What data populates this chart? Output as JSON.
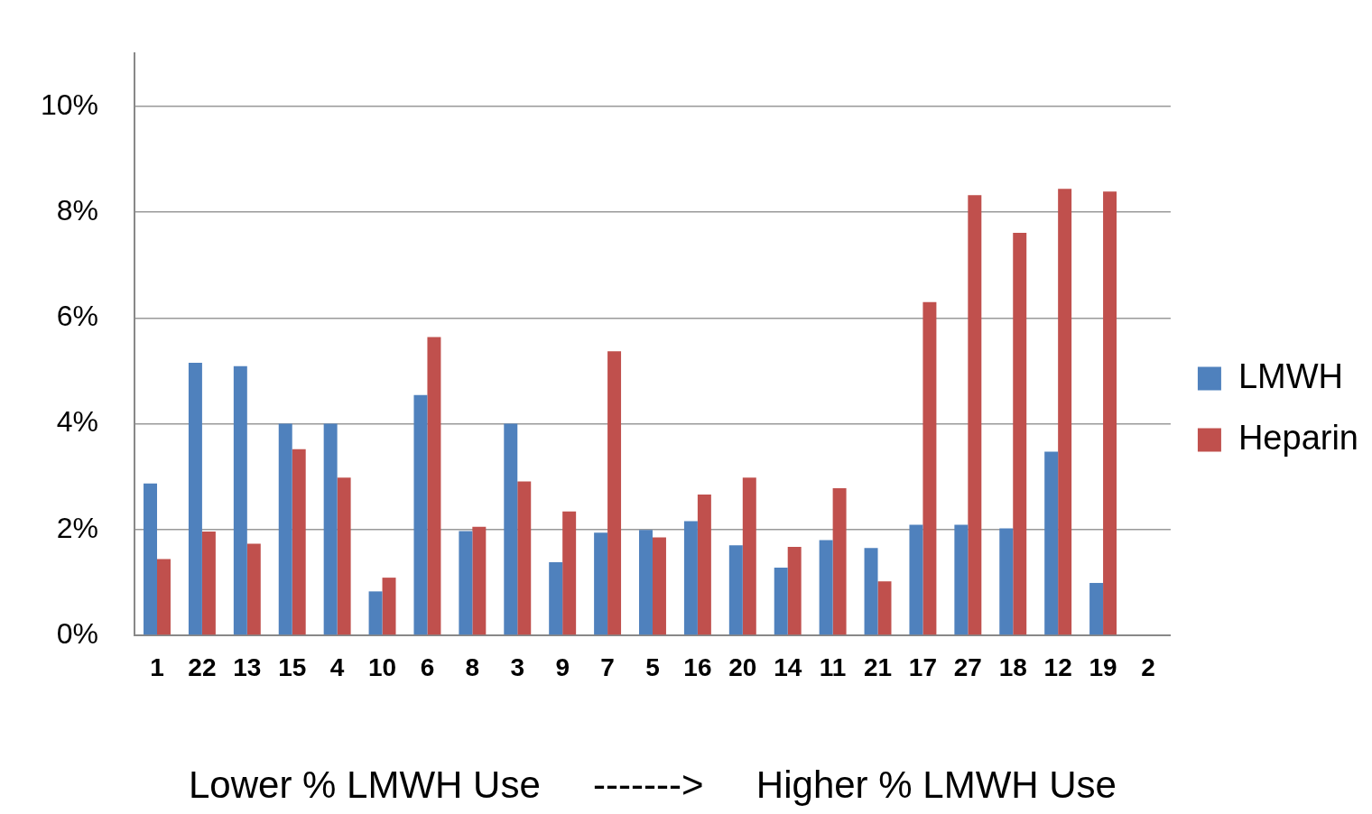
{
  "chart_data": {
    "type": "bar",
    "xlabel": "Lower % LMWH Use     ------->     Higher % LMWH Use",
    "categories": [
      "1",
      "22",
      "13",
      "15",
      "4",
      "10",
      "6",
      "8",
      "3",
      "9",
      "7",
      "5",
      "16",
      "20",
      "14",
      "11",
      "21",
      "17",
      "27",
      "18",
      "12",
      "19",
      "2"
    ],
    "series": [
      {
        "name": "LMWH",
        "color": "#4f81bd",
        "values": [
          2.87,
          5.15,
          5.09,
          4.0,
          4.0,
          0.83,
          4.54,
          1.97,
          4.0,
          1.38,
          1.94,
          1.99,
          2.16,
          1.7,
          1.28,
          1.8,
          1.65,
          2.09,
          2.09,
          2.02,
          3.47,
          0.99,
          null
        ]
      },
      {
        "name": "Heparin",
        "color": "#c0504d",
        "values": [
          1.44,
          1.96,
          1.73,
          3.52,
          2.98,
          1.09,
          5.64,
          2.05,
          2.91,
          2.34,
          5.37,
          1.85,
          2.66,
          2.98,
          1.67,
          2.78,
          1.02,
          6.3,
          8.32,
          7.61,
          8.44,
          8.39,
          null
        ]
      }
    ],
    "ylim": [
      0,
      11
    ],
    "yticks": [
      {
        "value": 0,
        "label": "0%"
      },
      {
        "value": 2,
        "label": "2%"
      },
      {
        "value": 4,
        "label": "4%"
      },
      {
        "value": 6,
        "label": "6%"
      },
      {
        "value": 8,
        "label": "8%"
      },
      {
        "value": 10,
        "label": "10%"
      }
    ],
    "grid": "y",
    "legend": "right"
  }
}
